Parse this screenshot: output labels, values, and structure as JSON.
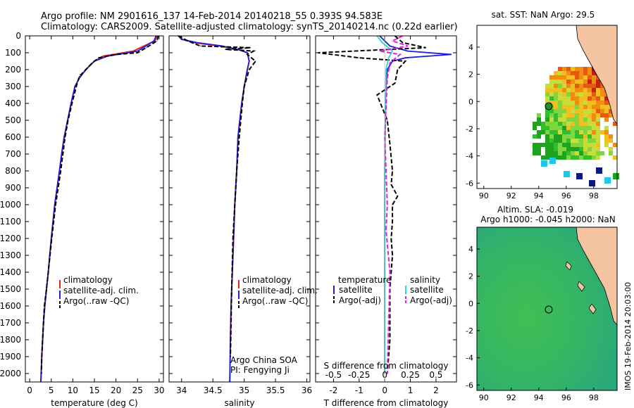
{
  "header": {
    "line1": "Argo profile: NM 2901616_137 14-Feb-2014 20140218_55 0.393S 94.583E",
    "line2": "Climatology: CARS2009. Satellite-adjusted climatology: synTS_20140214.nc (0.22d earlier)"
  },
  "colors": {
    "climatology": "#e8231b",
    "satellite": "#1f1fd8",
    "argo": "#000000",
    "sal_satellite": "#22d8d8",
    "sal_argo": "#e020e0",
    "land": "#f4c4a0",
    "sea_sla": "#39b449"
  },
  "chart_data": [
    {
      "type": "line",
      "name": "temperature-profile",
      "xlabel": "temperature (deg C)",
      "ylabel": "",
      "xlim": [
        -1,
        31
      ],
      "ylim": [
        2050,
        0
      ],
      "xticks": [
        0,
        5,
        10,
        15,
        20,
        25,
        30
      ],
      "yticks": [
        0,
        100,
        200,
        300,
        400,
        500,
        600,
        700,
        800,
        900,
        1000,
        1100,
        1200,
        1300,
        1400,
        1500,
        1600,
        1700,
        1800,
        1900,
        2000
      ],
      "legend": [
        "climatology",
        "satellite-adj. clim.",
        "Argo(..raw -QC)"
      ],
      "series": [
        {
          "name": "climatology",
          "x": [
            29.5,
            29,
            24,
            17,
            15,
            13,
            11.5,
            10.5,
            9.6,
            8.8,
            8.0,
            7.4,
            6.9,
            5.8,
            5.0,
            4.3,
            3.9,
            3.5,
            3.2,
            3.0,
            2.8,
            2.65,
            2.6
          ],
          "y": [
            0,
            30,
            90,
            120,
            150,
            200,
            250,
            300,
            400,
            500,
            600,
            700,
            800,
            1000,
            1200,
            1400,
            1500,
            1600,
            1700,
            1800,
            1900,
            2000,
            2050
          ]
        },
        {
          "name": "satellite-adj. clim.",
          "x": [
            29.3,
            28.8,
            25,
            18,
            15,
            13,
            11.5,
            10.5,
            9.6,
            8.8,
            8.0,
            7.4,
            6.9,
            5.8,
            5.0,
            4.3,
            3.9,
            3.5,
            3.2,
            3.0,
            2.8,
            2.65,
            2.6
          ],
          "y": [
            0,
            30,
            90,
            120,
            150,
            200,
            250,
            300,
            400,
            500,
            600,
            700,
            800,
            1000,
            1200,
            1400,
            1500,
            1600,
            1700,
            1800,
            1900,
            2000,
            2050
          ]
        },
        {
          "name": "Argo(..raw -QC)",
          "x": [
            29.8,
            29.5,
            27,
            25,
            20,
            16,
            14.5,
            13,
            11.5,
            10.8,
            9.8,
            8.9,
            8.2,
            7.2,
            6.0,
            5.1,
            4.3,
            3.9,
            3.4,
            3.0,
            2.8,
            2.7
          ],
          "y": [
            0,
            30,
            70,
            100,
            110,
            130,
            160,
            200,
            240,
            300,
            400,
            500,
            600,
            800,
            1000,
            1200,
            1400,
            1500,
            1600,
            1800,
            1900,
            2000
          ]
        }
      ]
    },
    {
      "type": "line",
      "name": "salinity-profile",
      "xlabel": "salinity",
      "xlim": [
        33.8,
        36.05
      ],
      "ylim": [
        2050,
        0
      ],
      "xticks": [
        34,
        34.5,
        35,
        35.5,
        36
      ],
      "legend": [
        "climatology",
        "satellite-adj. clim.",
        "Argo(..raw -QC)"
      ],
      "annotations": [
        "Argo China SOA",
        "PI: Fengying Ji"
      ],
      "series": [
        {
          "name": "climatology",
          "x": [
            33.95,
            34.0,
            34.2,
            34.6,
            34.9,
            35.05,
            35.08,
            35.05,
            35.0,
            34.96,
            34.93,
            34.9,
            34.88,
            34.85,
            34.83,
            34.81,
            34.79,
            34.78,
            34.77
          ],
          "y": [
            0,
            20,
            40,
            60,
            80,
            100,
            150,
            200,
            300,
            400,
            500,
            600,
            800,
            1000,
            1200,
            1400,
            1600,
            1800,
            2050
          ]
        },
        {
          "name": "satellite-adj. clim.",
          "x": [
            33.95,
            34.0,
            34.25,
            34.65,
            34.9,
            35.05,
            35.08,
            35.05,
            35.0,
            34.96,
            34.93,
            34.9,
            34.88,
            34.85,
            34.83,
            34.81,
            34.79,
            34.78,
            34.77
          ],
          "y": [
            0,
            20,
            40,
            60,
            80,
            100,
            150,
            200,
            300,
            400,
            500,
            600,
            800,
            1000,
            1200,
            1400,
            1600,
            1800,
            2050
          ]
        },
        {
          "name": "Argo(..raw -QC)",
          "x": [
            33.95,
            34.1,
            34.3,
            35.1,
            34.7,
            35.15,
            35.05,
            35.18,
            35.08,
            35.0,
            34.97,
            34.92,
            34.88,
            34.85,
            34.82,
            34.8,
            34.78
          ],
          "y": [
            0,
            30,
            60,
            70,
            80,
            90,
            110,
            150,
            200,
            300,
            400,
            600,
            800,
            1000,
            1200,
            1500,
            1900
          ]
        }
      ]
    },
    {
      "type": "line",
      "name": "difference-profile",
      "xlabel": "T difference from climatology",
      "xlabel_top": "S difference from climatology",
      "xlim": [
        -2.7,
        2.8
      ],
      "ylim": [
        2050,
        0
      ],
      "xticks": [
        -2,
        -1,
        0,
        1,
        2
      ],
      "xticks_s": [
        -0.5,
        -0.25,
        0,
        0.25,
        0.5
      ],
      "legend_groups": [
        {
          "title": "temperature",
          "items": [
            "satellite",
            "Argo(-adj)"
          ]
        },
        {
          "title": "salinity",
          "items": [
            "satellite",
            "Argo(-adj)"
          ]
        }
      ],
      "series": [
        {
          "name": "temperature satellite",
          "x": [
            -0.2,
            0.0,
            0.2,
            0.9,
            2.6,
            0.8,
            0.3,
            0.1,
            0.05,
            0.02,
            0.0,
            0.0,
            0.0,
            0.0
          ],
          "y": [
            0,
            30,
            60,
            90,
            110,
            130,
            150,
            200,
            300,
            500,
            800,
            1200,
            1600,
            2000
          ]
        },
        {
          "name": "temperature Argo(-adj)",
          "x": [
            0.4,
            0.7,
            1.6,
            -2.6,
            -1.0,
            0.8,
            0.5,
            0.4,
            -0.3,
            0.1,
            0.2,
            0.3,
            0.25,
            0.5,
            0.3,
            0.3,
            0.25,
            0.3,
            0.2,
            0.2,
            0.1
          ],
          "y": [
            0,
            40,
            70,
            100,
            130,
            150,
            200,
            280,
            350,
            500,
            640,
            800,
            880,
            950,
            1000,
            1100,
            1200,
            1300,
            1500,
            1800,
            2000
          ]
        },
        {
          "name": "salinity satellite",
          "x": [
            -0.3,
            -0.1,
            0.3,
            0.15,
            0.05,
            0.0,
            0.0
          ],
          "y": [
            0,
            40,
            90,
            130,
            200,
            800,
            2000
          ]
        },
        {
          "name": "salinity Argo(-adj)",
          "x": [
            0.7,
            0.3,
            0.9,
            -0.2,
            0.6,
            0.2,
            0.1,
            0.0,
            0.1,
            0.05,
            0.2,
            0.1
          ],
          "y": [
            0,
            30,
            60,
            90,
            110,
            160,
            250,
            600,
            1000,
            1150,
            1400,
            2000
          ]
        }
      ]
    },
    {
      "type": "heatmap",
      "name": "sst-map",
      "title": "sat. SST: NaN Argo: 29.5",
      "xticks": [
        90,
        92,
        94,
        96,
        98
      ],
      "yticks": [
        -6,
        -4,
        -2,
        0,
        2,
        4
      ],
      "xlim": [
        89.5,
        99.7
      ],
      "ylim": [
        -6.4,
        5.6
      ],
      "argo_position": [
        94.583,
        -0.393
      ]
    },
    {
      "type": "heatmap",
      "name": "sla-map",
      "title": "Altim. SLA: -0.019",
      "subtitle": "Argo h1000: -0.045 h2000: NaN",
      "xticks": [
        90,
        92,
        94,
        96,
        98
      ],
      "yticks": [
        -6,
        -4,
        -2,
        0,
        2,
        4
      ],
      "xlim": [
        89.5,
        99.7
      ],
      "ylim": [
        -6.4,
        5.6
      ],
      "argo_position": [
        94.583,
        -0.393
      ]
    }
  ],
  "footer": {
    "stamp": "IMOS 19-Feb-2014 20:03:00"
  }
}
